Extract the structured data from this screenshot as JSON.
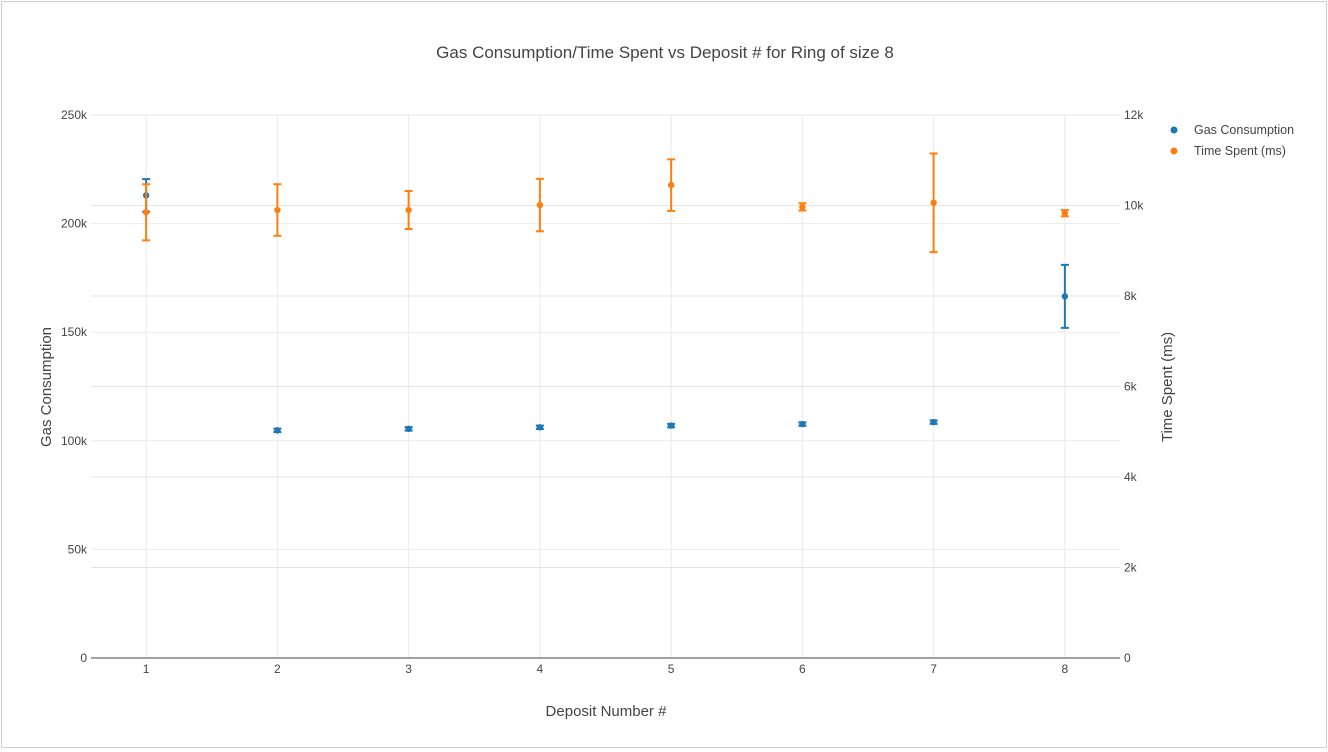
{
  "chart_data": {
    "type": "scatter",
    "title": "Gas Consumption/Time Spent vs Deposit # for Ring of size 8",
    "xlabel": "Deposit Number #",
    "ylabel": "Gas Consumption",
    "y2label": "Time Spent (ms)",
    "x": [
      1,
      2,
      3,
      4,
      5,
      6,
      7,
      8
    ],
    "xlim": [
      0.58,
      8.42
    ],
    "ylim": [
      0,
      250000
    ],
    "y2lim": [
      0,
      12000
    ],
    "xticks": [
      "1",
      "2",
      "3",
      "4",
      "5",
      "6",
      "7",
      "8"
    ],
    "yticks": [
      {
        "value": 0,
        "label": "0"
      },
      {
        "value": 50000,
        "label": "50k"
      },
      {
        "value": 100000,
        "label": "100k"
      },
      {
        "value": 150000,
        "label": "150k"
      },
      {
        "value": 200000,
        "label": "200k"
      },
      {
        "value": 250000,
        "label": "250k"
      }
    ],
    "y2ticks": [
      {
        "value": 0,
        "label": "0"
      },
      {
        "value": 2000,
        "label": "2k"
      },
      {
        "value": 4000,
        "label": "4k"
      },
      {
        "value": 6000,
        "label": "6k"
      },
      {
        "value": 8000,
        "label": "8k"
      },
      {
        "value": 10000,
        "label": "10k"
      },
      {
        "value": 12000,
        "label": "12k"
      }
    ],
    "grid": true,
    "legend_position": "top-right",
    "series": [
      {
        "name": "Gas Consumption",
        "axis": "y",
        "color": "#1f77b4",
        "values": [
          213000,
          104800,
          105500,
          106200,
          107000,
          107700,
          108600,
          166500
        ],
        "error": [
          7500,
          800,
          800,
          800,
          800,
          800,
          800,
          14500
        ]
      },
      {
        "name": "Time Spent (ms)",
        "axis": "y2",
        "color": "#ff7f0e",
        "values": [
          9850,
          9900,
          9900,
          10010,
          10450,
          9970,
          10060,
          9830
        ],
        "error": [
          620,
          570,
          420,
          580,
          570,
          80,
          1090,
          70
        ]
      }
    ]
  }
}
